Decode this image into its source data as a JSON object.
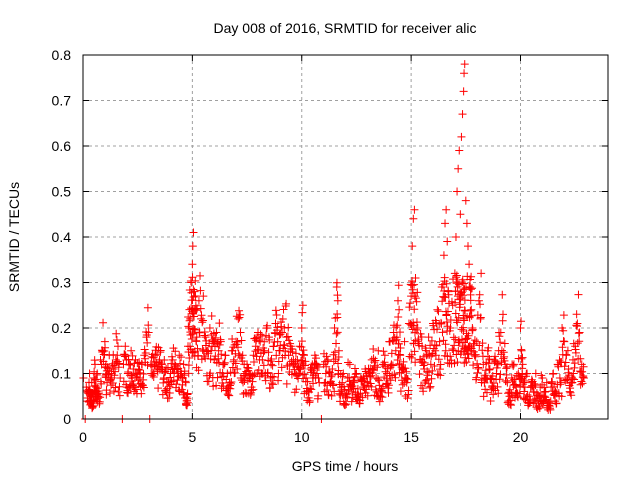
{
  "chart_data": {
    "type": "scatter",
    "title": "Day 008 of 2016, SRMTID for receiver alic",
    "xlabel": "GPS time / hours",
    "ylabel": "SRMTID / TECUs",
    "xlim": [
      0,
      24
    ],
    "ylim": [
      0,
      0.8
    ],
    "xticks": [
      0,
      5,
      10,
      15,
      20
    ],
    "xtick_labels": [
      "0",
      "5",
      "10",
      "15",
      "20"
    ],
    "yticks": [
      0,
      0.1,
      0.2,
      0.3,
      0.4,
      0.5,
      0.6,
      0.7,
      0.8
    ],
    "ytick_labels": [
      "0",
      "0.1",
      "0.2",
      "0.3",
      "0.4",
      "0.5",
      "0.6",
      "0.7",
      "0.8"
    ],
    "grid": true,
    "legend": "none",
    "marker": "+",
    "series_color": "#ff0000",
    "series": [
      {
        "name": "SRMTID",
        "points": [
          [
            0.02,
            0.09
          ],
          [
            0.1,
            0.0
          ],
          [
            0.15,
            0.07
          ],
          [
            0.25,
            0.06
          ],
          [
            0.3,
            0.1
          ],
          [
            0.35,
            0.05
          ],
          [
            0.4,
            0.08
          ],
          [
            0.45,
            0.04
          ],
          [
            0.5,
            0.09
          ],
          [
            0.55,
            0.12
          ],
          [
            0.6,
            0.07
          ],
          [
            0.65,
            0.1
          ],
          [
            0.7,
            0.05
          ],
          [
            0.8,
            0.13
          ],
          [
            0.9,
            0.15
          ],
          [
            1.0,
            0.17
          ],
          [
            1.05,
            0.12
          ],
          [
            1.1,
            0.08
          ],
          [
            1.2,
            0.14
          ],
          [
            1.3,
            0.1
          ],
          [
            1.4,
            0.11
          ],
          [
            1.5,
            0.13
          ],
          [
            1.6,
            0.16
          ],
          [
            1.7,
            0.09
          ],
          [
            1.8,
            0.0
          ],
          [
            1.85,
            0.12
          ],
          [
            1.95,
            0.14
          ],
          [
            2.05,
            0.1
          ],
          [
            2.1,
            0.12
          ],
          [
            2.2,
            0.15
          ],
          [
            2.3,
            0.11
          ],
          [
            2.4,
            0.13
          ],
          [
            2.5,
            0.1
          ],
          [
            2.6,
            0.09
          ],
          [
            2.7,
            0.12
          ],
          [
            2.8,
            0.14
          ],
          [
            2.9,
            0.18
          ],
          [
            3.0,
            0.19
          ],
          [
            3.05,
            0.0
          ],
          [
            3.1,
            0.12
          ],
          [
            3.2,
            0.1
          ],
          [
            3.3,
            0.14
          ],
          [
            3.4,
            0.11
          ],
          [
            3.5,
            0.13
          ],
          [
            3.6,
            0.12
          ],
          [
            3.7,
            0.09
          ],
          [
            3.8,
            0.11
          ],
          [
            3.9,
            0.08
          ],
          [
            4.0,
            0.1
          ],
          [
            4.1,
            0.13
          ],
          [
            4.2,
            0.12
          ],
          [
            4.3,
            0.11
          ],
          [
            4.4,
            0.14
          ],
          [
            4.5,
            0.1
          ],
          [
            4.6,
            0.12
          ],
          [
            4.7,
            0.08
          ],
          [
            4.75,
            0.04
          ],
          [
            4.8,
            0.16
          ],
          [
            4.85,
            0.2
          ],
          [
            4.9,
            0.22
          ],
          [
            4.95,
            0.3
          ],
          [
            5.0,
            0.34
          ],
          [
            5.02,
            0.38
          ],
          [
            5.05,
            0.41
          ],
          [
            5.1,
            0.28
          ],
          [
            5.15,
            0.24
          ],
          [
            5.2,
            0.18
          ],
          [
            5.3,
            0.26
          ],
          [
            5.4,
            0.22
          ],
          [
            5.5,
            0.27
          ],
          [
            5.6,
            0.18
          ],
          [
            5.7,
            0.15
          ],
          [
            5.8,
            0.2
          ],
          [
            5.9,
            0.16
          ],
          [
            6.0,
            0.13
          ],
          [
            6.1,
            0.19
          ],
          [
            6.2,
            0.15
          ],
          [
            6.3,
            0.17
          ],
          [
            6.4,
            0.12
          ],
          [
            6.5,
            0.14
          ],
          [
            6.6,
            0.1
          ],
          [
            6.7,
            0.08
          ],
          [
            6.8,
            0.15
          ],
          [
            6.9,
            0.13
          ],
          [
            7.0,
            0.17
          ],
          [
            7.1,
            0.22
          ],
          [
            7.2,
            0.19
          ],
          [
            7.3,
            0.14
          ],
          [
            7.4,
            0.1
          ],
          [
            7.5,
            0.12
          ],
          [
            7.6,
            0.09
          ],
          [
            7.7,
            0.07
          ],
          [
            7.8,
            0.14
          ],
          [
            7.9,
            0.16
          ],
          [
            8.0,
            0.19
          ],
          [
            8.1,
            0.17
          ],
          [
            8.2,
            0.13
          ],
          [
            8.3,
            0.15
          ],
          [
            8.4,
            0.2
          ],
          [
            8.5,
            0.18
          ],
          [
            8.6,
            0.12
          ],
          [
            8.7,
            0.16
          ],
          [
            8.8,
            0.21
          ],
          [
            8.9,
            0.17
          ],
          [
            9.0,
            0.15
          ],
          [
            9.1,
            0.19
          ],
          [
            9.2,
            0.2
          ],
          [
            9.3,
            0.18
          ],
          [
            9.4,
            0.14
          ],
          [
            9.5,
            0.16
          ],
          [
            9.6,
            0.12
          ],
          [
            9.7,
            0.1
          ],
          [
            9.8,
            0.13
          ],
          [
            9.9,
            0.16
          ],
          [
            10.0,
            0.2
          ],
          [
            10.05,
            0.25
          ],
          [
            10.1,
            0.14
          ],
          [
            10.2,
            0.09
          ],
          [
            10.3,
            0.06
          ],
          [
            10.4,
            0.11
          ],
          [
            10.5,
            0.09
          ],
          [
            10.6,
            0.14
          ],
          [
            10.7,
            0.1
          ],
          [
            10.8,
            0.08
          ],
          [
            10.9,
            0.0
          ],
          [
            11.0,
            0.12
          ],
          [
            11.1,
            0.1
          ],
          [
            11.2,
            0.13
          ],
          [
            11.3,
            0.08
          ],
          [
            11.4,
            0.11
          ],
          [
            11.5,
            0.2
          ],
          [
            11.6,
            0.29
          ],
          [
            11.65,
            0.26
          ],
          [
            11.7,
            0.15
          ],
          [
            11.8,
            0.07
          ],
          [
            11.9,
            0.1
          ],
          [
            12.0,
            0.05
          ],
          [
            12.1,
            0.09
          ],
          [
            12.2,
            0.12
          ],
          [
            12.3,
            0.06
          ],
          [
            12.4,
            0.08
          ],
          [
            12.5,
            0.1
          ],
          [
            12.6,
            0.05
          ],
          [
            12.7,
            0.09
          ],
          [
            12.8,
            0.07
          ],
          [
            12.9,
            0.11
          ],
          [
            13.0,
            0.08
          ],
          [
            13.1,
            0.1
          ],
          [
            13.2,
            0.13
          ],
          [
            13.3,
            0.11
          ],
          [
            13.4,
            0.09
          ],
          [
            13.5,
            0.15
          ],
          [
            13.6,
            0.06
          ],
          [
            13.7,
            0.12
          ],
          [
            13.8,
            0.14
          ],
          [
            13.9,
            0.1
          ],
          [
            14.0,
            0.17
          ],
          [
            14.1,
            0.12
          ],
          [
            14.2,
            0.19
          ],
          [
            14.3,
            0.15
          ],
          [
            14.4,
            0.26
          ],
          [
            14.45,
            0.24
          ],
          [
            14.5,
            0.14
          ],
          [
            14.6,
            0.11
          ],
          [
            14.7,
            0.17
          ],
          [
            14.8,
            0.08
          ],
          [
            14.9,
            0.21
          ],
          [
            15.0,
            0.27
          ],
          [
            15.05,
            0.38
          ],
          [
            15.1,
            0.44
          ],
          [
            15.15,
            0.46
          ],
          [
            15.2,
            0.31
          ],
          [
            15.3,
            0.2
          ],
          [
            15.4,
            0.13
          ],
          [
            15.5,
            0.16
          ],
          [
            15.6,
            0.11
          ],
          [
            15.7,
            0.14
          ],
          [
            15.8,
            0.18
          ],
          [
            15.9,
            0.12
          ],
          [
            16.0,
            0.21
          ],
          [
            16.1,
            0.15
          ],
          [
            16.2,
            0.24
          ],
          [
            16.3,
            0.17
          ],
          [
            16.4,
            0.29
          ],
          [
            16.5,
            0.36
          ],
          [
            16.55,
            0.43
          ],
          [
            16.6,
            0.46
          ],
          [
            16.65,
            0.39
          ],
          [
            16.7,
            0.28
          ],
          [
            16.8,
            0.2
          ],
          [
            16.9,
            0.25
          ],
          [
            17.0,
            0.32
          ],
          [
            17.05,
            0.4
          ],
          [
            17.1,
            0.5
          ],
          [
            17.15,
            0.55
          ],
          [
            17.2,
            0.59
          ],
          [
            17.25,
            0.45
          ],
          [
            17.3,
            0.62
          ],
          [
            17.35,
            0.67
          ],
          [
            17.4,
            0.72
          ],
          [
            17.42,
            0.76
          ],
          [
            17.45,
            0.78
          ],
          [
            17.5,
            0.48
          ],
          [
            17.55,
            0.43
          ],
          [
            17.6,
            0.38
          ],
          [
            17.65,
            0.34
          ],
          [
            17.7,
            0.29
          ],
          [
            17.75,
            0.24
          ],
          [
            17.8,
            0.2
          ],
          [
            17.9,
            0.14
          ],
          [
            18.0,
            0.17
          ],
          [
            18.1,
            0.26
          ],
          [
            18.2,
            0.32
          ],
          [
            18.3,
            0.12
          ],
          [
            18.4,
            0.09
          ],
          [
            18.5,
            0.15
          ],
          [
            18.6,
            0.11
          ],
          [
            18.7,
            0.07
          ],
          [
            18.8,
            0.13
          ],
          [
            18.9,
            0.1
          ],
          [
            19.0,
            0.15
          ],
          [
            19.1,
            0.19
          ],
          [
            19.2,
            0.23
          ],
          [
            19.3,
            0.12
          ],
          [
            19.4,
            0.08
          ],
          [
            19.5,
            0.05
          ],
          [
            19.6,
            0.09
          ],
          [
            19.7,
            0.12
          ],
          [
            19.8,
            0.07
          ],
          [
            19.9,
            0.1
          ],
          [
            20.0,
            0.2
          ],
          [
            20.05,
            0.15
          ],
          [
            20.1,
            0.12
          ],
          [
            20.2,
            0.07
          ],
          [
            20.3,
            0.1
          ],
          [
            20.4,
            0.05
          ],
          [
            20.5,
            0.08
          ],
          [
            20.6,
            0.06
          ],
          [
            20.7,
            0.1
          ],
          [
            20.8,
            0.04
          ],
          [
            20.9,
            0.07
          ],
          [
            21.0,
            0.09
          ],
          [
            21.1,
            0.05
          ],
          [
            21.2,
            0.08
          ],
          [
            21.3,
            0.03
          ],
          [
            21.4,
            0.07
          ],
          [
            21.5,
            0.1
          ],
          [
            21.6,
            0.06
          ],
          [
            21.7,
            0.12
          ],
          [
            21.8,
            0.09
          ],
          [
            21.9,
            0.2
          ],
          [
            22.0,
            0.17
          ],
          [
            22.1,
            0.14
          ],
          [
            22.2,
            0.11
          ],
          [
            22.3,
            0.08
          ],
          [
            22.4,
            0.13
          ],
          [
            22.5,
            0.16
          ],
          [
            22.6,
            0.21
          ],
          [
            22.7,
            0.19
          ],
          [
            22.8,
            0.12
          ],
          [
            22.9,
            0.09
          ]
        ]
      }
    ]
  }
}
